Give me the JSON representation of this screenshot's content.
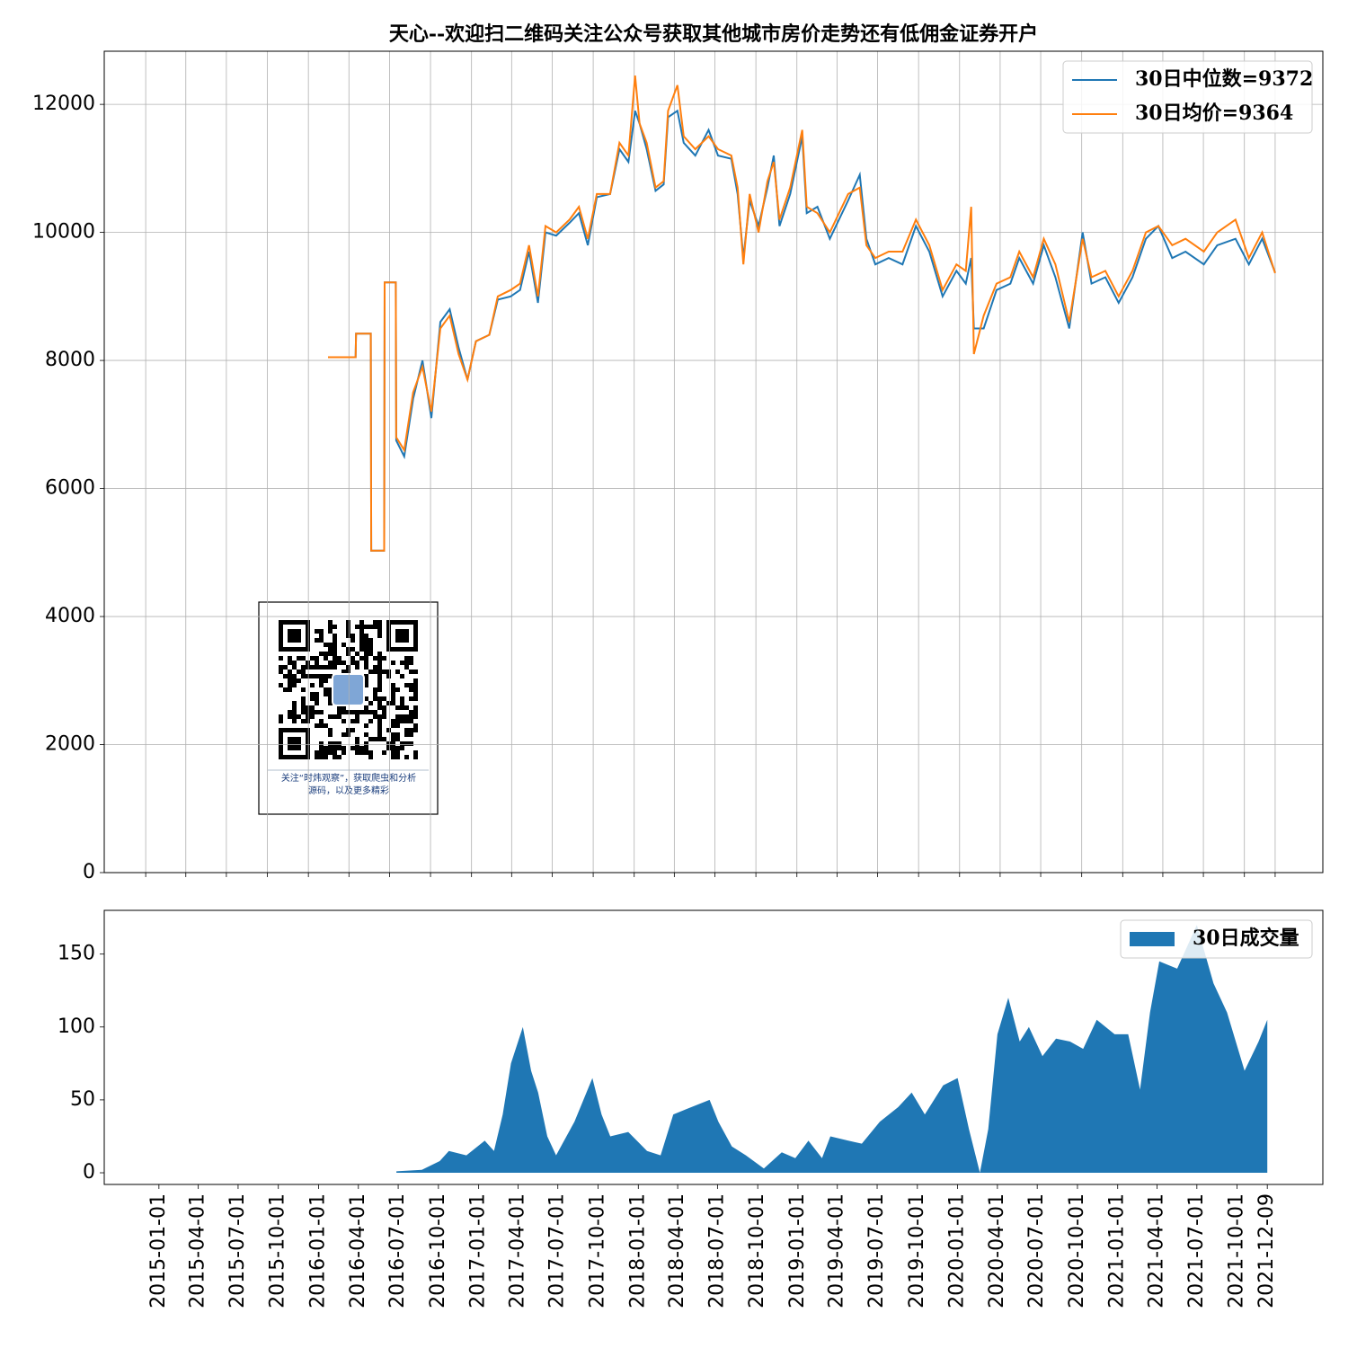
{
  "chart_data": [
    {
      "type": "line",
      "title": "天心--欢迎扫二维码关注公众号获取其他城市房价走势还有低佣金证券开户",
      "x": [
        "2016-02-14",
        "2016-04-16",
        "2016-04-17",
        "2016-05-20",
        "2016-05-21",
        "2016-06-19",
        "2016-06-20",
        "2016-07-15",
        "2016-07-16",
        "2016-08-03",
        "2016-08-23",
        "2016-09-13",
        "2016-10-03",
        "2016-10-23",
        "2016-11-13",
        "2016-12-03",
        "2016-12-23",
        "2017-01-11",
        "2017-02-10",
        "2017-03-01",
        "2017-03-30",
        "2017-04-20",
        "2017-05-10",
        "2017-05-30",
        "2017-06-16",
        "2017-07-10",
        "2017-08-09",
        "2017-08-30",
        "2017-09-19",
        "2017-10-09",
        "2017-11-08",
        "2017-11-29",
        "2017-12-19",
        "2018-01-03",
        "2018-01-13",
        "2018-01-29",
        "2018-02-18",
        "2018-03-08",
        "2018-03-18",
        "2018-04-08",
        "2018-04-22",
        "2018-05-18",
        "2018-06-17",
        "2018-07-08",
        "2018-08-07",
        "2018-08-21",
        "2018-09-03",
        "2018-09-17",
        "2018-10-07",
        "2018-10-27",
        "2018-11-10",
        "2018-11-23",
        "2018-12-17",
        "2019-01-13",
        "2019-01-23",
        "2019-02-16",
        "2019-03-16",
        "2019-04-26",
        "2019-05-22",
        "2019-06-06",
        "2019-06-26",
        "2019-07-26",
        "2019-08-26",
        "2019-09-25",
        "2019-10-25",
        "2019-11-24",
        "2019-12-25",
        "2020-01-15",
        "2020-01-27",
        "2020-02-02",
        "2020-02-24",
        "2020-03-24",
        "2020-04-24",
        "2020-05-14",
        "2020-06-14",
        "2020-07-08",
        "2020-08-03",
        "2020-09-03",
        "2020-10-03",
        "2020-10-23",
        "2020-11-23",
        "2020-12-23",
        "2021-01-23",
        "2021-02-22",
        "2021-03-22",
        "2021-04-22",
        "2021-05-22",
        "2021-07-02",
        "2021-08-01",
        "2021-09-11",
        "2021-10-11",
        "2021-11-10",
        "2021-12-09"
      ],
      "series": [
        {
          "name": "30日中位数=9372",
          "color": "#1f77b4",
          "values": [
            8050,
            8050,
            8420,
            8420,
            5030,
            5030,
            9220,
            9220,
            6750,
            6500,
            7400,
            8000,
            7100,
            8600,
            8800,
            8200,
            7700,
            8300,
            8400,
            8950,
            9000,
            9100,
            9700,
            8900,
            10000,
            9950,
            10150,
            10300,
            9800,
            10550,
            10600,
            11300,
            11100,
            11900,
            11700,
            11300,
            10650,
            10750,
            11800,
            11900,
            11400,
            11200,
            11600,
            11200,
            11150,
            10600,
            9600,
            10500,
            10100,
            10700,
            11200,
            10100,
            10600,
            11500,
            10300,
            10400,
            9900,
            10500,
            10900,
            9900,
            9500,
            9600,
            9500,
            10100,
            9700,
            9000,
            9400,
            9200,
            9600,
            8500,
            8500,
            9100,
            9200,
            9600,
            9200,
            9800,
            9300,
            8500,
            10000,
            9200,
            9300,
            8900,
            9300,
            9900,
            10100,
            9600,
            9700,
            9500,
            9800,
            9900,
            9500,
            9900,
            9372
          ]
        },
        {
          "name": "30日均价=9364",
          "color": "#ff7f0e",
          "values": [
            8050,
            8050,
            8420,
            8420,
            5030,
            5030,
            9220,
            9220,
            6800,
            6600,
            7500,
            7900,
            7200,
            8500,
            8700,
            8100,
            7700,
            8300,
            8400,
            9000,
            9100,
            9200,
            9800,
            9000,
            10100,
            10000,
            10200,
            10400,
            9900,
            10600,
            10600,
            11400,
            11200,
            12450,
            11700,
            11400,
            10700,
            10800,
            11900,
            12300,
            11500,
            11300,
            11500,
            11300,
            11200,
            10700,
            9500,
            10600,
            10000,
            10800,
            11100,
            10200,
            10700,
            11600,
            10400,
            10300,
            10000,
            10600,
            10700,
            9800,
            9600,
            9700,
            9700,
            10200,
            9800,
            9100,
            9500,
            9400,
            10400,
            8100,
            8700,
            9200,
            9300,
            9700,
            9300,
            9900,
            9500,
            8600,
            9900,
            9300,
            9400,
            9000,
            9400,
            10000,
            10100,
            9800,
            9900,
            9700,
            10000,
            10200,
            9600,
            10000,
            9364
          ]
        }
      ],
      "xlim": [
        "2014-09-30",
        "2022-03-26"
      ],
      "xticks": [
        "2015-01-01",
        "2015-04-01",
        "2015-07-01",
        "2015-10-01",
        "2016-01-01",
        "2016-04-01",
        "2016-07-01",
        "2016-10-01",
        "2017-01-01",
        "2017-04-01",
        "2017-07-01",
        "2017-10-01",
        "2018-01-01",
        "2018-04-01",
        "2018-07-01",
        "2018-10-01",
        "2019-01-01",
        "2019-04-01",
        "2019-07-01",
        "2019-10-01",
        "2020-01-01",
        "2020-04-01",
        "2020-07-01",
        "2020-10-01",
        "2021-01-01",
        "2021-04-01",
        "2021-07-01",
        "2021-10-01",
        "2021-12-09"
      ],
      "ylim": [
        0,
        12830
      ],
      "yticks": [
        0,
        2000,
        4000,
        6000,
        8000,
        10000,
        12000
      ],
      "grid": true,
      "legend": "upper right",
      "qr_caption": [
        "关注“时炜观察”，获取爬虫和分析",
        "源码，以及更多精彩"
      ]
    },
    {
      "type": "area",
      "x": [
        "2016-06-27",
        "2016-08-24",
        "2016-10-04",
        "2016-10-25",
        "2016-12-04",
        "2017-01-15",
        "2017-02-05",
        "2017-02-25",
        "2017-03-16",
        "2017-04-12",
        "2017-05-01",
        "2017-05-17",
        "2017-06-07",
        "2017-06-27",
        "2017-08-08",
        "2017-09-18",
        "2017-10-09",
        "2017-10-29",
        "2017-12-09",
        "2018-01-21",
        "2018-02-21",
        "2018-03-22",
        "2018-05-02",
        "2018-06-13",
        "2018-07-03",
        "2018-08-03",
        "2018-09-04",
        "2018-10-15",
        "2018-11-25",
        "2018-12-26",
        "2019-01-25",
        "2019-02-25",
        "2019-03-16",
        "2019-04-26",
        "2019-05-27",
        "2019-07-07",
        "2019-08-18",
        "2019-09-18",
        "2019-10-18",
        "2019-11-29",
        "2020-01-01",
        "2020-01-27",
        "2020-02-21",
        "2020-03-11",
        "2020-04-01",
        "2020-04-26",
        "2020-05-22",
        "2020-06-12",
        "2020-07-13",
        "2020-08-13",
        "2020-09-14",
        "2020-10-14",
        "2020-11-14",
        "2020-12-25",
        "2021-01-25",
        "2021-02-21",
        "2021-03-16",
        "2021-04-06",
        "2021-05-17",
        "2021-07-01",
        "2021-08-08",
        "2021-09-08",
        "2021-10-18",
        "2021-11-19",
        "2021-12-09"
      ],
      "series": [
        {
          "name": "30日成交量",
          "color": "#1f77b4",
          "values": [
            1,
            2,
            8,
            15,
            12,
            22,
            15,
            40,
            75,
            100,
            70,
            55,
            25,
            12,
            35,
            65,
            40,
            25,
            28,
            15,
            12,
            40,
            45,
            50,
            35,
            18,
            12,
            3,
            14,
            10,
            22,
            10,
            25,
            22,
            20,
            35,
            45,
            55,
            40,
            60,
            65,
            30,
            0,
            30,
            95,
            120,
            90,
            100,
            80,
            92,
            90,
            85,
            105,
            95,
            95,
            57,
            110,
            145,
            140,
            170,
            130,
            110,
            70,
            90,
            105
          ]
        }
      ],
      "xlim": [
        "2014-08-29",
        "2022-04-15"
      ],
      "xticks": [
        "2015-01-01",
        "2015-04-01",
        "2015-07-01",
        "2015-10-01",
        "2016-01-01",
        "2016-04-01",
        "2016-07-01",
        "2016-10-01",
        "2017-01-01",
        "2017-04-01",
        "2017-07-01",
        "2017-10-01",
        "2018-01-01",
        "2018-04-01",
        "2018-07-01",
        "2018-10-01",
        "2019-01-01",
        "2019-04-01",
        "2019-07-01",
        "2019-10-01",
        "2020-01-01",
        "2020-04-01",
        "2020-07-01",
        "2020-10-01",
        "2021-01-01",
        "2021-04-01",
        "2021-07-01",
        "2021-10-01",
        "2021-12-09"
      ],
      "ylim": [
        -8,
        180
      ],
      "yticks": [
        0,
        50,
        100,
        150
      ],
      "grid": false,
      "legend": "upper right"
    }
  ]
}
